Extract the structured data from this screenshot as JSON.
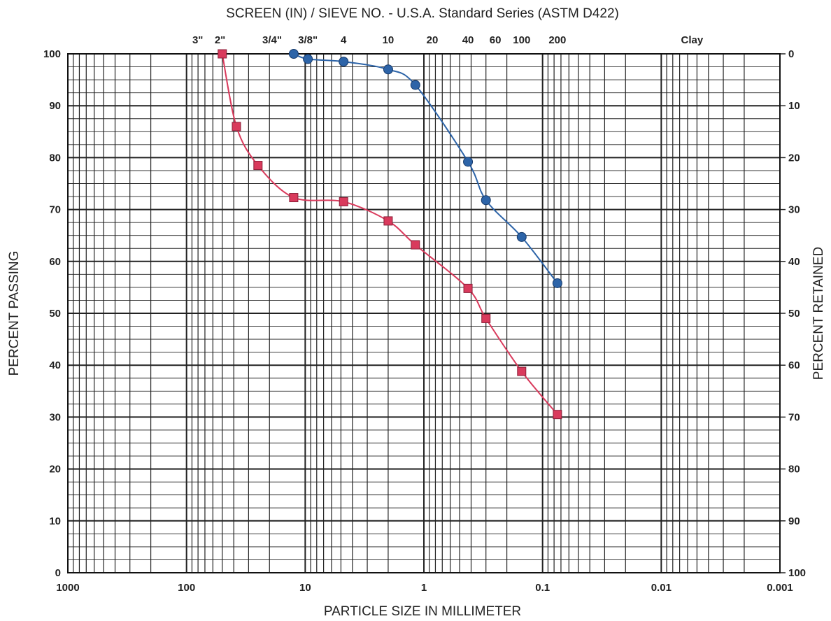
{
  "chart_data": {
    "type": "line",
    "title": "SCREEN (IN) / SIEVE NO. - U.S.A. Standard Series (ASTM D422)",
    "xlabel": "PARTICLE  SIZE IN MILLIMETER",
    "ylabel": "PERCENT PASSING",
    "y2label": "PERCENT RETAINED",
    "x_scale": "log",
    "x_reversed": true,
    "xlim": [
      1000,
      0.001
    ],
    "ylim": [
      0,
      100
    ],
    "grid": true,
    "x_ticks": [
      {
        "value": 1000,
        "label": "1000"
      },
      {
        "value": 100,
        "label": "100"
      },
      {
        "value": 10,
        "label": "10"
      },
      {
        "value": 1,
        "label": "1"
      },
      {
        "value": 0.1,
        "label": "0.1"
      },
      {
        "value": 0.01,
        "label": "0.01"
      },
      {
        "value": 0.001,
        "label": "0.001"
      }
    ],
    "y_ticks": [
      0,
      10,
      20,
      30,
      40,
      50,
      60,
      70,
      80,
      90,
      100
    ],
    "y2_ticks": [
      "100",
      "90",
      "80",
      "70",
      "60",
      "50",
      "40",
      "30",
      "20",
      "10",
      "0"
    ],
    "sieve_labels": [
      {
        "label": "3\"",
        "size_mm": 76.2
      },
      {
        "label": "2\"",
        "size_mm": 50.8
      },
      {
        "label": "3/4\"",
        "size_mm": 19.0
      },
      {
        "label": "3/8\"",
        "size_mm": 9.5
      },
      {
        "label": "4",
        "size_mm": 4.75
      },
      {
        "label": "10",
        "size_mm": 2.0
      },
      {
        "label": "20",
        "size_mm": 0.85
      },
      {
        "label": "40",
        "size_mm": 0.425
      },
      {
        "label": "60",
        "size_mm": 0.25
      },
      {
        "label": "100",
        "size_mm": 0.15
      },
      {
        "label": "200",
        "size_mm": 0.075
      },
      {
        "label": "Clay",
        "size_mm": 0.0055
      }
    ],
    "series": [
      {
        "color": "#d93a5c",
        "marker": "square",
        "x": [
          50,
          38,
          25,
          12.5,
          4.75,
          2.0,
          1.18,
          0.425,
          0.3,
          0.15,
          0.075
        ],
        "values": [
          100,
          86,
          78.5,
          72.3,
          71.5,
          67.8,
          63.2,
          54.8,
          49,
          38.8,
          30.5
        ]
      },
      {
        "color": "#2d64a8",
        "marker": "circle",
        "x": [
          12.5,
          9.5,
          4.75,
          2.0,
          1.18,
          0.425,
          0.3,
          0.15,
          0.075
        ],
        "values": [
          100,
          99,
          98.5,
          97,
          94,
          79.2,
          71.8,
          64.7,
          55.8
        ]
      }
    ]
  }
}
